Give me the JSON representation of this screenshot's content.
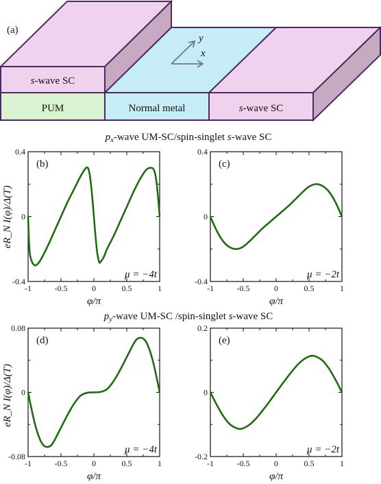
{
  "device": {
    "panel_label": "(a)",
    "blocks": {
      "left_top": "s-wave SC",
      "left_bottom": "PUM",
      "middle": "Normal metal",
      "right": "s-wave SC"
    },
    "axes": {
      "x": "x",
      "y": "y"
    },
    "colors": {
      "sc": "#f0d1ee",
      "sc_side": "#c7a9c2",
      "normal": "#c6ecf7",
      "pum": "#d9f2cf",
      "edge": "#4b2a63"
    }
  },
  "sections": {
    "top": "p_x-wave UM-SC/spin-singlet s-wave SC",
    "bottom": "p_y-wave UM-SC /spin-singlet s-wave SC"
  },
  "ylabel": "eR_N I(φ)/Δ(T)",
  "xlabel": "φ/π",
  "line_color": "#1f6b12",
  "chart_data": [
    {
      "panel": "(b)",
      "type": "line",
      "annotation": "μ = −4t",
      "xlim": [
        -1,
        1
      ],
      "ylim": [
        -0.4,
        0.4
      ],
      "xticks": [
        "-1",
        "-0.5",
        "0",
        "0.5",
        "1"
      ],
      "yticks": [
        "-0.4",
        "0",
        "0.4"
      ],
      "x": [
        -1.0,
        -0.98,
        -0.95,
        -0.9,
        -0.85,
        -0.8,
        -0.7,
        -0.6,
        -0.5,
        -0.4,
        -0.3,
        -0.2,
        -0.12,
        -0.08,
        -0.05,
        -0.02,
        0.0,
        0.02,
        0.05,
        0.08,
        0.1,
        0.15,
        0.2,
        0.3,
        0.4,
        0.5,
        0.6,
        0.7,
        0.8,
        0.88,
        0.92,
        0.95,
        0.98,
        1.0
      ],
      "y": [
        0.0,
        -0.2,
        -0.27,
        -0.3,
        -0.29,
        -0.26,
        -0.18,
        -0.09,
        0.0,
        0.09,
        0.17,
        0.25,
        0.3,
        0.29,
        0.22,
        0.1,
        0.0,
        -0.1,
        -0.22,
        -0.28,
        -0.28,
        -0.25,
        -0.2,
        -0.12,
        -0.03,
        0.06,
        0.15,
        0.23,
        0.29,
        0.3,
        0.28,
        0.22,
        0.1,
        0.0
      ]
    },
    {
      "panel": "(c)",
      "type": "line",
      "annotation": "μ = −2t",
      "xlim": [
        -1,
        1
      ],
      "ylim": [
        -0.4,
        0.4
      ],
      "xticks": [
        "-1",
        "-0.5",
        "0",
        "0.5",
        "1"
      ],
      "yticks": [
        "-0.4",
        "0",
        "0.4"
      ],
      "x": [
        -1.0,
        -0.9,
        -0.8,
        -0.7,
        -0.6,
        -0.5,
        -0.4,
        -0.3,
        -0.2,
        -0.1,
        0.0,
        0.1,
        0.2,
        0.3,
        0.4,
        0.5,
        0.6,
        0.7,
        0.8,
        0.9,
        1.0
      ],
      "y": [
        0.0,
        -0.09,
        -0.155,
        -0.19,
        -0.2,
        -0.185,
        -0.15,
        -0.11,
        -0.07,
        -0.035,
        0.0,
        0.035,
        0.07,
        0.11,
        0.15,
        0.185,
        0.2,
        0.19,
        0.155,
        0.09,
        0.0
      ]
    },
    {
      "panel": "(d)",
      "type": "line",
      "annotation": "μ = −4t",
      "xlim": [
        -1,
        1
      ],
      "ylim": [
        -0.08,
        0.08
      ],
      "xticks": [
        "-1",
        "-0.5",
        "0",
        "0.5",
        "1"
      ],
      "yticks": [
        "-0.08",
        "0",
        "0.08"
      ],
      "x": [
        -1.0,
        -0.95,
        -0.9,
        -0.85,
        -0.8,
        -0.75,
        -0.7,
        -0.65,
        -0.6,
        -0.55,
        -0.5,
        -0.4,
        -0.3,
        -0.2,
        -0.1,
        0.0,
        0.1,
        0.2,
        0.3,
        0.4,
        0.5,
        0.55,
        0.6,
        0.65,
        0.7,
        0.75,
        0.8,
        0.85,
        0.9,
        0.95,
        1.0
      ],
      "y": [
        0.0,
        -0.02,
        -0.038,
        -0.052,
        -0.062,
        -0.067,
        -0.068,
        -0.066,
        -0.06,
        -0.052,
        -0.044,
        -0.028,
        -0.014,
        -0.004,
        -0.0005,
        0.0,
        0.0005,
        0.004,
        0.014,
        0.028,
        0.044,
        0.052,
        0.06,
        0.066,
        0.068,
        0.067,
        0.062,
        0.052,
        0.038,
        0.02,
        0.0
      ]
    },
    {
      "panel": "(e)",
      "type": "line",
      "annotation": "μ = −2t",
      "xlim": [
        -1,
        1
      ],
      "ylim": [
        -0.2,
        0.2
      ],
      "xticks": [
        "-1",
        "-0.5",
        "0",
        "0.5",
        "1"
      ],
      "yticks": [
        "-0.2",
        "0",
        "0.2"
      ],
      "x": [
        -1.0,
        -0.9,
        -0.8,
        -0.7,
        -0.6,
        -0.55,
        -0.5,
        -0.4,
        -0.3,
        -0.2,
        -0.1,
        0.0,
        0.1,
        0.2,
        0.3,
        0.4,
        0.5,
        0.55,
        0.6,
        0.7,
        0.8,
        0.9,
        1.0
      ],
      "y": [
        0.0,
        -0.04,
        -0.075,
        -0.1,
        -0.112,
        -0.114,
        -0.112,
        -0.1,
        -0.08,
        -0.055,
        -0.028,
        0.0,
        0.028,
        0.055,
        0.08,
        0.1,
        0.112,
        0.114,
        0.112,
        0.1,
        0.075,
        0.04,
        0.0
      ]
    }
  ]
}
